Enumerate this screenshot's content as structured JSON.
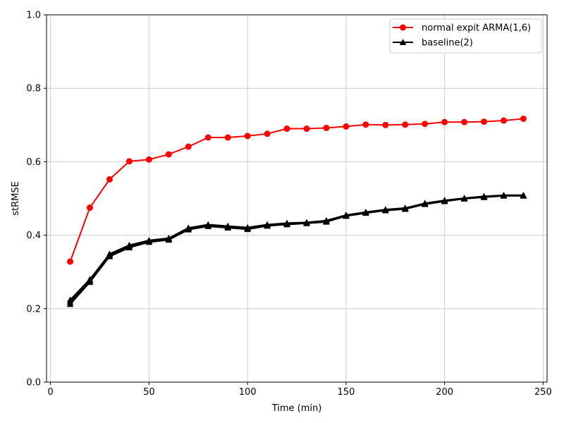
{
  "chart_data": {
    "type": "line",
    "title": "",
    "xlabel": "Time (min)",
    "ylabel": "stRMSE",
    "xlim": [
      -2,
      252
    ],
    "ylim": [
      0.0,
      1.0
    ],
    "x_ticks": [
      0,
      50,
      100,
      150,
      200,
      250
    ],
    "x_tick_labels": [
      "0",
      "50",
      "100",
      "150",
      "200",
      "250"
    ],
    "y_ticks": [
      0.0,
      0.2,
      0.4,
      0.6,
      0.8,
      1.0
    ],
    "y_tick_labels": [
      "0.0",
      "0.2",
      "0.4",
      "0.6",
      "0.8",
      "1.0"
    ],
    "grid": true,
    "legend_position": "top-right",
    "x": [
      10,
      20,
      30,
      40,
      50,
      60,
      70,
      80,
      90,
      100,
      110,
      120,
      130,
      140,
      150,
      160,
      170,
      180,
      190,
      200,
      210,
      220,
      230,
      240
    ],
    "series": [
      {
        "name": "normal expit ARMA(1,6)",
        "color": "#ff0000",
        "marker": "circle",
        "values": [
          0.328,
          0.475,
          0.552,
          0.601,
          0.606,
          0.62,
          0.641,
          0.666,
          0.666,
          0.67,
          0.676,
          0.69,
          0.69,
          0.692,
          0.696,
          0.701,
          0.7,
          0.701,
          0.703,
          0.708,
          0.708,
          0.709,
          0.712,
          0.717
        ]
      },
      {
        "name": "baseline(2)",
        "color": "#000000",
        "marker": "triangle",
        "values": [
          0.212,
          0.272,
          0.342,
          0.366,
          0.381,
          0.387,
          0.415,
          0.424,
          0.42,
          0.416,
          0.425,
          0.429,
          0.432,
          0.436,
          0.452,
          0.46,
          0.467,
          0.471,
          0.484,
          0.492,
          0.499,
          0.503,
          0.507,
          0.507
        ]
      },
      {
        "name": "",
        "color": "#000000",
        "marker": "triangle",
        "values": [
          0.218,
          0.276,
          0.346,
          0.37,
          0.384,
          0.39,
          0.418,
          0.427,
          0.423,
          0.419,
          0.427,
          0.431,
          0.434,
          0.438,
          0.454,
          0.462,
          0.469,
          0.473,
          0.486,
          0.494,
          0.5,
          0.505,
          0.508,
          0.508
        ]
      },
      {
        "name": "",
        "color": "#000000",
        "marker": "triangle",
        "values": [
          0.224,
          0.28,
          0.349,
          0.373,
          0.386,
          0.392,
          0.42,
          0.429,
          0.425,
          0.421,
          0.429,
          0.433,
          0.435,
          0.44,
          0.455,
          0.463,
          0.47,
          0.474,
          0.487,
          0.495,
          0.501,
          0.506,
          0.509,
          0.509
        ]
      }
    ]
  }
}
